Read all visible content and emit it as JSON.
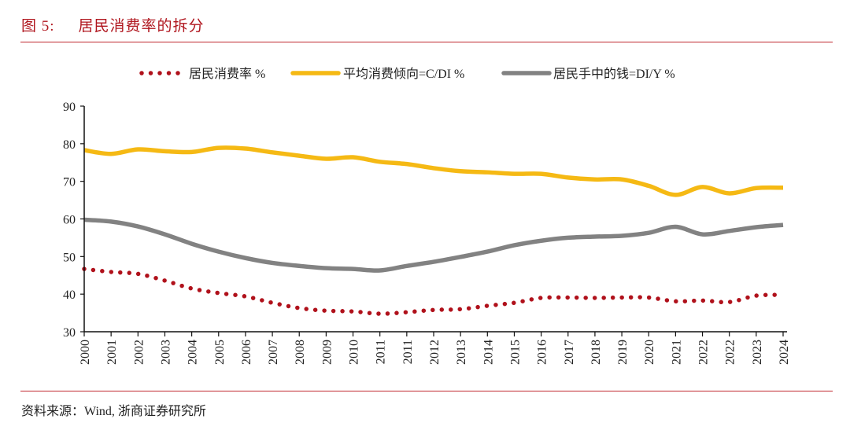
{
  "header": {
    "figure_number": "图 5:",
    "title": "居民消费率的拆分"
  },
  "footer": {
    "source": "资料来源：Wind, 浙商证券研究所"
  },
  "colors": {
    "title": "#b0161e",
    "rule": "#c0282f",
    "series_red": "#b0111b",
    "series_yellow": "#f5b914",
    "series_gray": "#828282",
    "axis": "#111111"
  },
  "chart_data": {
    "type": "line",
    "title": "居民消费率的拆分",
    "xlabel": "",
    "ylabel": "",
    "ylim": [
      30,
      90
    ],
    "yticks": [
      30,
      40,
      50,
      60,
      70,
      80,
      90
    ],
    "grid": false,
    "legend_position": "top",
    "categories": [
      "2000",
      "2001",
      "2002",
      "2003",
      "2004",
      "2005",
      "2006",
      "2007",
      "2008",
      "2009",
      "2010",
      "2011",
      "2011",
      "2012",
      "2013",
      "2014",
      "2015",
      "2016",
      "2017",
      "2018",
      "2019",
      "2020",
      "2021",
      "2022",
      "2022",
      "2023",
      "2024"
    ],
    "series": [
      {
        "name": "居民消费率 %",
        "style": "dotted",
        "color": "#b0111b",
        "values": [
          46.7,
          45.9,
          45.4,
          43.6,
          41.5,
          40.3,
          39.4,
          37.7,
          36.3,
          35.6,
          35.4,
          34.8,
          35.2,
          35.8,
          36.0,
          36.9,
          37.7,
          39.0,
          39.1,
          39.0,
          39.1,
          39.1,
          38.1,
          38.3,
          37.9,
          39.6,
          39.8
        ]
      },
      {
        "name": "平均消费倾向=C/DI %",
        "style": "solid",
        "color": "#f5b914",
        "values": [
          78.3,
          77.3,
          78.5,
          78.0,
          77.8,
          78.9,
          78.7,
          77.7,
          76.8,
          76.0,
          76.4,
          75.2,
          74.6,
          73.5,
          72.7,
          72.4,
          72.0,
          72.0,
          71.0,
          70.5,
          70.5,
          68.8,
          66.4,
          68.5,
          66.8,
          68.2,
          68.3
        ]
      },
      {
        "name": "居民手中的钱=DI/Y %",
        "style": "solid",
        "color": "#828282",
        "values": [
          59.8,
          59.3,
          58.0,
          55.9,
          53.4,
          51.3,
          49.6,
          48.3,
          47.5,
          46.9,
          46.7,
          46.3,
          47.5,
          48.6,
          49.9,
          51.3,
          53.0,
          54.2,
          55.0,
          55.3,
          55.5,
          56.3,
          57.9,
          55.9,
          56.8,
          57.8,
          58.4
        ]
      }
    ]
  }
}
